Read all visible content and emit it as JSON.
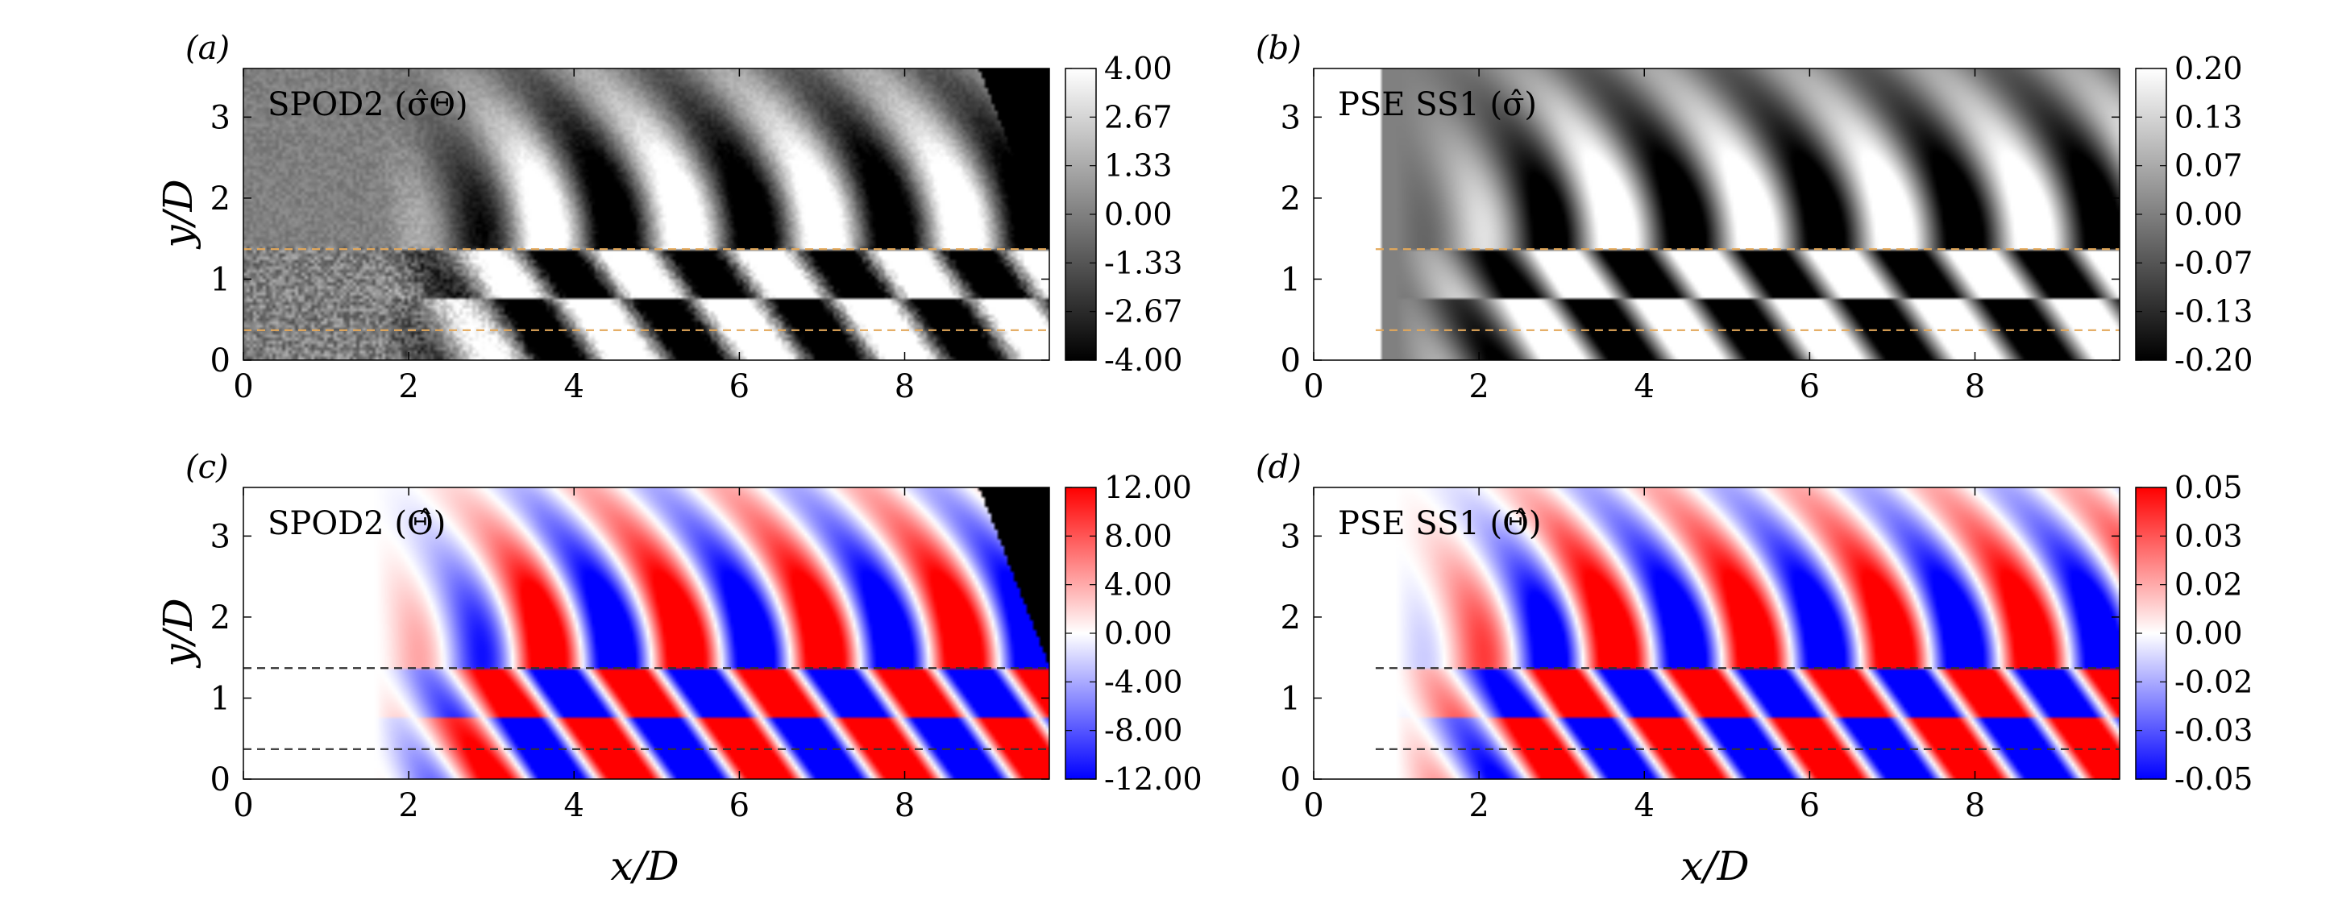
{
  "figure": {
    "xlabel": "x/D",
    "ylabel": "y/D"
  },
  "chart_data": [
    {
      "type": "heatmap",
      "letter": "(a)",
      "title": "SPOD2 (σ̂Θ)",
      "xlabel": "",
      "ylabel": "y/D",
      "xlim": [
        0,
        9.75
      ],
      "ylim": [
        0,
        3.6
      ],
      "x_ticks": [
        0,
        2,
        4,
        6,
        8
      ],
      "y_ticks": [
        0,
        1,
        2,
        3
      ],
      "x_tick_labels": [
        "0",
        "2",
        "4",
        "6",
        "8"
      ],
      "y_tick_labels": [
        "0",
        "1",
        "2",
        "3"
      ],
      "colorscale": "gray",
      "clim": [
        -4.0,
        4.0
      ],
      "colorbar_tick_labels": [
        "4.00",
        "2.67",
        "1.33",
        "0.00",
        "-1.33",
        "-2.67",
        "-4.00"
      ],
      "dashed_lines_y": [
        1.37,
        0.37
      ],
      "dashed_line_color": "#e3a85a"
    },
    {
      "type": "heatmap",
      "letter": "(b)",
      "title": "PSE SS1 (σ̂)",
      "xlabel": "",
      "ylabel": "",
      "xlim": [
        0,
        9.75
      ],
      "ylim": [
        0,
        3.6
      ],
      "x_ticks": [
        0,
        2,
        4,
        6,
        8
      ],
      "y_ticks": [
        0,
        1,
        2,
        3
      ],
      "x_tick_labels": [
        "0",
        "2",
        "4",
        "6",
        "8"
      ],
      "y_tick_labels": [
        "0",
        "1",
        "2",
        "3"
      ],
      "colorscale": "gray",
      "clim": [
        -0.2,
        0.2
      ],
      "colorbar_tick_labels": [
        "0.20",
        "0.13",
        "0.07",
        "0.00",
        "-0.07",
        "-0.13",
        "-0.20"
      ],
      "dashed_lines_y": [
        1.37,
        0.37
      ],
      "dashed_line_color": "#e3a85a"
    },
    {
      "type": "heatmap",
      "letter": "(c)",
      "title": "SPOD2 (Θ̂)",
      "xlabel": "x/D",
      "ylabel": "y/D",
      "xlim": [
        0,
        9.75
      ],
      "ylim": [
        0,
        3.6
      ],
      "x_ticks": [
        0,
        2,
        4,
        6,
        8
      ],
      "y_ticks": [
        0,
        1,
        2,
        3
      ],
      "x_tick_labels": [
        "0",
        "2",
        "4",
        "6",
        "8"
      ],
      "y_tick_labels": [
        "0",
        "1",
        "2",
        "3"
      ],
      "colorscale": "blue-white-red",
      "clim": [
        -12.0,
        12.0
      ],
      "colorbar_tick_labels": [
        "12.00",
        "8.00",
        "4.00",
        "0.00",
        "-4.00",
        "-8.00",
        "-12.00"
      ],
      "dashed_lines_y": [
        1.37,
        0.37
      ],
      "dashed_line_color": "#333333"
    },
    {
      "type": "heatmap",
      "letter": "(d)",
      "title": "PSE SS1 (Θ̂)",
      "xlabel": "x/D",
      "ylabel": "",
      "xlim": [
        0,
        9.75
      ],
      "ylim": [
        0,
        3.6
      ],
      "x_ticks": [
        0,
        2,
        4,
        6,
        8
      ],
      "y_ticks": [
        0,
        1,
        2,
        3
      ],
      "x_tick_labels": [
        "0",
        "2",
        "4",
        "6",
        "8"
      ],
      "y_tick_labels": [
        "0",
        "1",
        "2",
        "3"
      ],
      "colorscale": "blue-white-red",
      "clim": [
        -0.05,
        0.05
      ],
      "colorbar_tick_labels": [
        "0.05",
        "0.03",
        "0.02",
        "0.00",
        "-0.02",
        "-0.03",
        "-0.05"
      ],
      "dashed_lines_y": [
        1.37,
        0.37
      ],
      "dashed_line_color": "#333333"
    }
  ]
}
